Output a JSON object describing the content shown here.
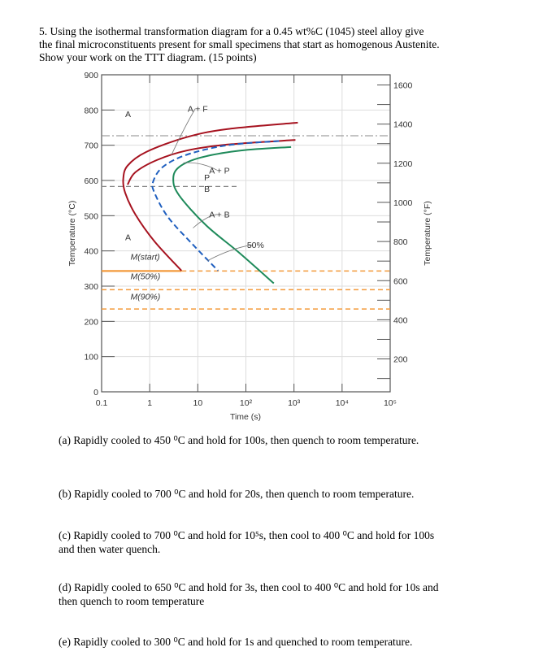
{
  "question": {
    "line1": "5. Using the isothermal transformation diagram for a 0.45 wt%C (1045) steel alloy give",
    "line2": "the final microconstituents present for small specimens that start as homogenous Austenite.",
    "line3": "Show your work on the TTT diagram. (15 points)"
  },
  "parts": [
    {
      "lines": [
        "(a) Rapidly cooled to 450 ⁰C and hold for 100s, then quench to room temperature."
      ]
    },
    {
      "lines": [
        "(b) Rapidly cooled to 700 ⁰C and hold for 20s, then quench to room temperature."
      ]
    },
    {
      "lines": [
        "(c) Rapidly cooled to 700 ⁰C and hold for 10⁵s, then cool to 400 ⁰C and hold for 100s",
        "and then water quench."
      ]
    },
    {
      "lines": [
        "(d) Rapidly cooled to 650 ⁰C and hold for 3s, then cool to 400 ⁰C and hold for 10s and",
        "then quench to room temperature"
      ]
    },
    {
      "lines": [
        "(e) Rapidly cooled to 300 ⁰C and hold for 1s and quenched to room temperature."
      ]
    }
  ],
  "chart_data": {
    "type": "line",
    "title": "",
    "xlabel": "Time (s)",
    "ylabel": "Temperature (°C)",
    "y2label": "Temperature (°F)",
    "xscale": "log",
    "xlim_log10": [
      -1,
      5
    ],
    "ylim": [
      0,
      900
    ],
    "x_tick_labels": [
      "0.1",
      "1",
      "10",
      "10²",
      "10³",
      "10⁴",
      "10⁵"
    ],
    "y_ticks": [
      0,
      100,
      200,
      300,
      400,
      500,
      600,
      700,
      800,
      900
    ],
    "y2_ticks": [
      200,
      400,
      600,
      800,
      1000,
      1200,
      1400,
      1600
    ],
    "colors": {
      "start": "#a6121f",
      "fifty": "#1f5fbf",
      "finish": "#1e8a5a",
      "martensite": "#f39a3b",
      "ref": "#888888"
    },
    "series": [
      {
        "name": "start-curve",
        "color_key": "start",
        "style": "solid",
        "points_log10t_T": [
          [
            3.08,
            764
          ],
          [
            1.62,
            746
          ],
          [
            0.77,
            723
          ],
          [
            -0.07,
            681
          ],
          [
            -0.46,
            642
          ],
          [
            -0.55,
            604
          ],
          [
            -0.51,
            565
          ],
          [
            -0.3,
            504
          ],
          [
            0.1,
            427
          ],
          [
            0.66,
            344
          ]
        ]
      },
      {
        "name": "ferrite-finish-curve",
        "color_key": "start",
        "style": "solid",
        "points_log10t_T": [
          [
            3.03,
            715
          ],
          [
            1.62,
            702
          ],
          [
            0.77,
            685
          ],
          [
            0.15,
            658
          ],
          [
            -0.3,
            623
          ],
          [
            -0.46,
            588
          ]
        ]
      },
      {
        "name": "fifty-percent-curve",
        "color_key": "fifty",
        "style": "dashed",
        "points_log10t_T": [
          [
            2.69,
            712
          ],
          [
            1.62,
            700
          ],
          [
            0.77,
            673
          ],
          [
            0.27,
            638
          ],
          [
            0.07,
            596
          ],
          [
            0.1,
            565
          ],
          [
            0.38,
            496
          ],
          [
            0.89,
            419
          ],
          [
            1.42,
            344
          ]
        ]
      },
      {
        "name": "finish-curve",
        "color_key": "finish",
        "style": "solid",
        "points_log10t_T": [
          [
            2.94,
            695
          ],
          [
            1.9,
            685
          ],
          [
            1.06,
            665
          ],
          [
            0.61,
            638
          ],
          [
            0.49,
            604
          ],
          [
            0.61,
            558
          ],
          [
            1.17,
            473
          ],
          [
            1.85,
            396
          ],
          [
            2.58,
            308
          ]
        ]
      }
    ],
    "reference_lines": [
      {
        "name": "eutectoid-line",
        "T": 727,
        "style": "dashdot",
        "color_key": "ref"
      },
      {
        "name": "pearlite-bainite-line",
        "T": 583,
        "style": "dashed",
        "color_key": "ref",
        "to_log10t": 1.85
      },
      {
        "name": "m-start-line",
        "T": 343,
        "style": "mixed",
        "color_key": "martensite",
        "solid_to_log10t": 0.66
      },
      {
        "name": "m-50-line",
        "T": 290,
        "style": "dashed",
        "color_key": "martensite"
      },
      {
        "name": "m-90-line",
        "T": 235,
        "style": "dashed",
        "color_key": "martensite"
      }
    ],
    "annotations": [
      {
        "text": "A",
        "log10t": -0.45,
        "T": 780
      },
      {
        "text": "A + F",
        "log10t": 1.0,
        "T": 795,
        "arrow_to": [
          0.45,
          672
        ]
      },
      {
        "text": "A + P",
        "log10t": 1.45,
        "T": 620,
        "arrow_to": [
          0.7,
          650
        ]
      },
      {
        "text": "P",
        "log10t": 1.19,
        "T": 600
      },
      {
        "text": "B",
        "log10t": 1.19,
        "T": 568
      },
      {
        "text": "A + B",
        "log10t": 1.45,
        "T": 495,
        "arrow_to": [
          0.9,
          465
        ]
      },
      {
        "text": "A",
        "log10t": -0.45,
        "T": 430
      },
      {
        "text": "50%",
        "log10t": 2.2,
        "T": 408,
        "arrow_to": [
          1.2,
          372
        ]
      },
      {
        "text": "M(start)",
        "log10t": -0.4,
        "T": 375
      },
      {
        "text": "M(50%)",
        "log10t": -0.4,
        "T": 320
      },
      {
        "text": "M(90%)",
        "log10t": -0.4,
        "T": 262
      }
    ]
  }
}
